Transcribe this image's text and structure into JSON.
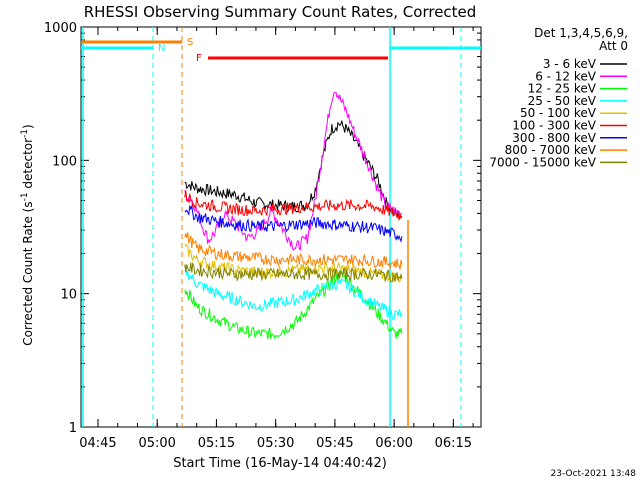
{
  "chart_data": {
    "type": "line",
    "title": "RHESSI Observing Summary Count Rates, Corrected",
    "xlabel": "Start Time (16-May-14 04:40:42)",
    "ylabel_main": "Corrected Count Rate (s",
    "ylabel_sup1": "-1",
    "ylabel_mid": " detector",
    "ylabel_sup2": "-1",
    "ylabel_end": ")",
    "y_scale": "log",
    "ylim": [
      1,
      1000
    ],
    "xlim_minutes": [
      "04:40:42",
      "06:22:00"
    ],
    "x_ticks": [
      "04:45",
      "05:00",
      "05:15",
      "05:30",
      "05:45",
      "06:00",
      "06:15"
    ],
    "y_ticks": [
      "1",
      "10",
      "100",
      "1000"
    ],
    "legend_header_1": "Det 1,3,4,5,6,9,",
    "legend_header_2": "Att 0",
    "series": [
      {
        "name": "3 - 6 keV",
        "color": "#000000",
        "x": [
          "05:07",
          "05:10",
          "05:15",
          "05:20",
          "05:25",
          "05:30",
          "05:35",
          "05:38",
          "05:40",
          "05:42",
          "05:44",
          "05:46",
          "05:48",
          "05:50",
          "05:53",
          "05:56",
          "05:58",
          "06:00",
          "06:02"
        ],
        "y": [
          68,
          62,
          58,
          55,
          48,
          46,
          45,
          47,
          60,
          110,
          170,
          190,
          170,
          140,
          100,
          70,
          48,
          40,
          38
        ]
      },
      {
        "name": "6 - 12 keV",
        "color": "#ff00ff",
        "x": [
          "05:07",
          "05:09",
          "05:11",
          "05:13",
          "05:15",
          "05:17",
          "05:20",
          "05:23",
          "05:26",
          "05:29",
          "05:32",
          "05:35",
          "05:38",
          "05:40",
          "05:42",
          "05:44",
          "05:45",
          "05:46",
          "05:48",
          "05:50",
          "05:53",
          "05:56",
          "05:58",
          "06:00",
          "06:02"
        ],
        "y": [
          55,
          50,
          35,
          25,
          30,
          40,
          33,
          26,
          30,
          42,
          30,
          22,
          26,
          50,
          120,
          280,
          350,
          300,
          230,
          160,
          100,
          60,
          45,
          42,
          40
        ]
      },
      {
        "name": "12 - 25 keV",
        "color": "#00ff00",
        "x": [
          "05:07",
          "05:10",
          "05:15",
          "05:20",
          "05:25",
          "05:30",
          "05:35",
          "05:40",
          "05:44",
          "05:46",
          "05:48",
          "05:50",
          "05:53",
          "05:56",
          "05:58",
          "06:00",
          "06:02"
        ],
        "y": [
          11,
          8,
          6.5,
          5.5,
          5,
          5,
          6,
          9,
          12,
          14,
          13,
          11,
          9,
          7,
          6,
          5,
          5
        ]
      },
      {
        "name": "25 - 50 keV",
        "color": "#00ffff",
        "x": [
          "05:07",
          "05:10",
          "05:15",
          "05:20",
          "05:25",
          "05:30",
          "05:35",
          "05:40",
          "05:44",
          "05:46",
          "05:48",
          "05:50",
          "05:53",
          "05:56",
          "05:58",
          "06:00",
          "06:02"
        ],
        "y": [
          15,
          12,
          10,
          9,
          8,
          8.5,
          9,
          10.5,
          11.5,
          12,
          11.5,
          10.5,
          9,
          8,
          7.5,
          7,
          7
        ]
      },
      {
        "name": "50 - 100 keV",
        "color": "#e0c000",
        "x": [
          "05:07",
          "05:10",
          "05:15",
          "05:20",
          "05:25",
          "05:30",
          "05:35",
          "05:40",
          "05:45",
          "05:50",
          "05:55",
          "06:00",
          "06:02"
        ],
        "y": [
          22,
          18,
          16,
          15,
          14.5,
          14.5,
          15,
          15.5,
          15.5,
          15,
          14,
          13.5,
          13
        ]
      },
      {
        "name": "100 - 300 keV",
        "color": "#ff0000",
        "x": [
          "05:07",
          "05:10",
          "05:15",
          "05:20",
          "05:25",
          "05:30",
          "05:35",
          "05:40",
          "05:45",
          "05:50",
          "05:55",
          "06:00",
          "06:02"
        ],
        "y": [
          55,
          48,
          45,
          43,
          42,
          43,
          44,
          45,
          46,
          46,
          45,
          40,
          38
        ]
      },
      {
        "name": "300 - 800 keV",
        "color": "#0000ff",
        "x": [
          "05:07",
          "05:10",
          "05:15",
          "05:20",
          "05:25",
          "05:30",
          "05:35",
          "05:40",
          "05:45",
          "05:50",
          "05:55",
          "06:00",
          "06:02"
        ],
        "y": [
          45,
          38,
          35,
          33,
          32,
          32,
          33,
          34,
          33,
          32,
          31,
          28,
          27
        ]
      },
      {
        "name": "800 - 7000 keV",
        "color": "#ff8000",
        "x": [
          "05:07",
          "05:10",
          "05:15",
          "05:20",
          "05:25",
          "05:30",
          "05:35",
          "05:40",
          "05:45",
          "05:50",
          "05:55",
          "06:00",
          "06:02"
        ],
        "y": [
          28,
          22,
          20,
          19,
          18.5,
          18,
          18,
          18,
          18,
          18,
          17.5,
          17,
          16.5
        ]
      },
      {
        "name": "7000 - 15000 keV",
        "color": "#808000",
        "x": [
          "05:07",
          "05:10",
          "05:15",
          "05:20",
          "05:25",
          "05:30",
          "05:35",
          "05:40",
          "05:45",
          "05:50",
          "05:55",
          "06:00",
          "06:02"
        ],
        "y": [
          16,
          15,
          14.5,
          14,
          14,
          14,
          14,
          14,
          14,
          14,
          14,
          13.5,
          13
        ]
      }
    ],
    "annotations": [
      {
        "label": "S",
        "color": "#ff8000"
      },
      {
        "label": "N",
        "color": "#00ffff"
      },
      {
        "label": "F",
        "color": "#ff0000"
      }
    ]
  },
  "footer": {
    "timestamp": "23-Oct-2021 13:48"
  }
}
